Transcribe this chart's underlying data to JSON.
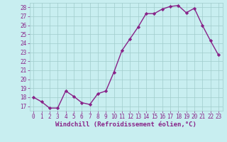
{
  "x": [
    0,
    1,
    2,
    3,
    4,
    5,
    6,
    7,
    8,
    9,
    10,
    11,
    12,
    13,
    14,
    15,
    16,
    17,
    18,
    19,
    20,
    21,
    22,
    23
  ],
  "y": [
    18,
    17.5,
    16.8,
    16.8,
    18.7,
    18.1,
    17.4,
    17.2,
    18.4,
    18.7,
    20.8,
    23.2,
    24.5,
    25.8,
    27.3,
    27.3,
    27.8,
    28.1,
    28.2,
    27.4,
    27.9,
    26.0,
    24.3,
    22.7
  ],
  "line_color": "#882288",
  "marker": "D",
  "marker_size": 2.2,
  "background_color": "#c8eef0",
  "grid_color": "#a0cccc",
  "xlabel": "Windchill (Refroidissement éolien,°C)",
  "ylabel": "",
  "xlim": [
    -0.5,
    23.5
  ],
  "ylim": [
    16.5,
    28.5
  ],
  "yticks": [
    17,
    18,
    19,
    20,
    21,
    22,
    23,
    24,
    25,
    26,
    27,
    28
  ],
  "xticks": [
    0,
    1,
    2,
    3,
    4,
    5,
    6,
    7,
    8,
    9,
    10,
    11,
    12,
    13,
    14,
    15,
    16,
    17,
    18,
    19,
    20,
    21,
    22,
    23
  ],
  "tick_fontsize": 5.5,
  "xlabel_fontsize": 6.5,
  "line_width": 1.0,
  "tick_color": "#882288",
  "label_color": "#882288"
}
